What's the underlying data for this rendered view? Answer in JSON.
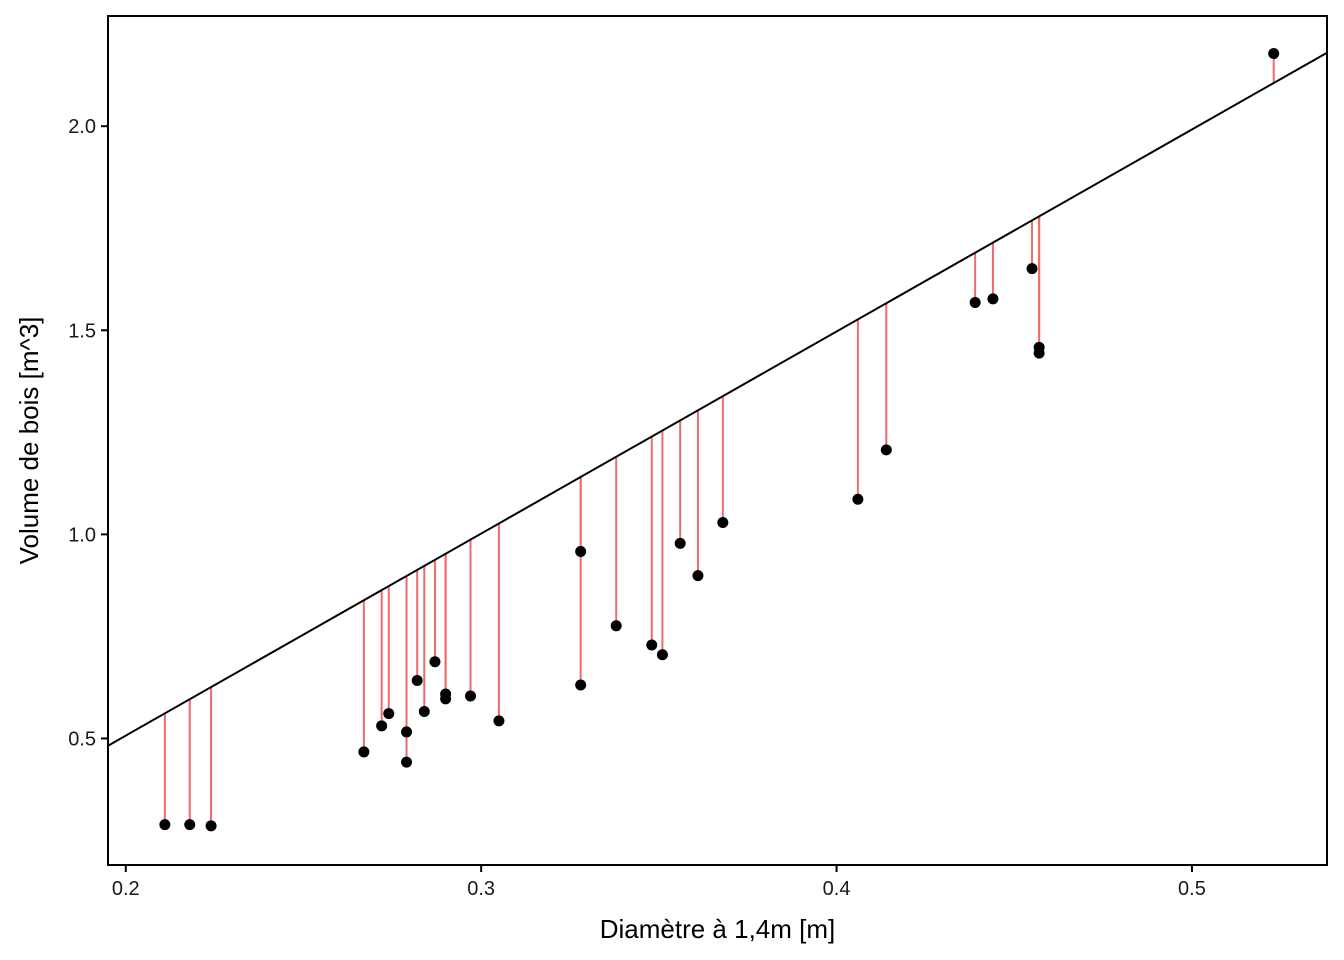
{
  "chart_data": {
    "type": "scatter",
    "title": "",
    "xlabel": "Diamètre à 1,4m  [m]",
    "ylabel": "Volume de bois  [m^3]",
    "xlim": [
      0.195,
      0.538
    ],
    "ylim": [
      0.19,
      2.27
    ],
    "x_ticks": [
      0.2,
      0.3,
      0.4,
      0.5
    ],
    "x_tick_labels": [
      "0.2",
      "0.3",
      "0.4",
      "0.5"
    ],
    "y_ticks": [
      0.5,
      1.0,
      1.5,
      2.0
    ],
    "y_tick_labels": [
      "0.5",
      "1.0",
      "1.5",
      "2.0"
    ],
    "grid": false,
    "regression_line": {
      "slope": 4.95,
      "intercept": -0.483
    },
    "colors": {
      "points": "#000000",
      "residuals": "#ef6a6a",
      "line": "#000000",
      "frame": "#000000"
    },
    "points": [
      {
        "x": 0.211,
        "y": 0.289
      },
      {
        "x": 0.218,
        "y": 0.289
      },
      {
        "x": 0.224,
        "y": 0.286
      },
      {
        "x": 0.267,
        "y": 0.467
      },
      {
        "x": 0.272,
        "y": 0.531
      },
      {
        "x": 0.274,
        "y": 0.561
      },
      {
        "x": 0.279,
        "y": 0.516
      },
      {
        "x": 0.279,
        "y": 0.442
      },
      {
        "x": 0.282,
        "y": 0.642
      },
      {
        "x": 0.284,
        "y": 0.566
      },
      {
        "x": 0.287,
        "y": 0.688
      },
      {
        "x": 0.29,
        "y": 0.609
      },
      {
        "x": 0.29,
        "y": 0.597
      },
      {
        "x": 0.297,
        "y": 0.604
      },
      {
        "x": 0.305,
        "y": 0.543
      },
      {
        "x": 0.328,
        "y": 0.958
      },
      {
        "x": 0.328,
        "y": 0.631
      },
      {
        "x": 0.338,
        "y": 0.776
      },
      {
        "x": 0.348,
        "y": 0.729
      },
      {
        "x": 0.351,
        "y": 0.705
      },
      {
        "x": 0.356,
        "y": 0.978
      },
      {
        "x": 0.361,
        "y": 0.899
      },
      {
        "x": 0.368,
        "y": 1.029
      },
      {
        "x": 0.406,
        "y": 1.086
      },
      {
        "x": 0.414,
        "y": 1.207
      },
      {
        "x": 0.439,
        "y": 1.568
      },
      {
        "x": 0.444,
        "y": 1.577
      },
      {
        "x": 0.455,
        "y": 1.651
      },
      {
        "x": 0.457,
        "y": 1.458
      },
      {
        "x": 0.457,
        "y": 1.444
      },
      {
        "x": 0.523,
        "y": 2.178
      }
    ]
  }
}
